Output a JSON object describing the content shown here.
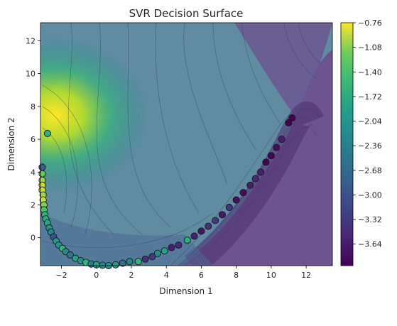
{
  "chart_data": {
    "type": "contour",
    "title": "SVR Decision Surface",
    "xlabel": "Dimension 1",
    "ylabel": "Dimension 2",
    "xlim": [
      -3.2,
      13.5
    ],
    "ylim": [
      -1.7,
      13.1
    ],
    "xticks": [
      -2,
      0,
      2,
      4,
      6,
      8,
      10,
      12
    ],
    "yticks": [
      0,
      2,
      4,
      6,
      8,
      10,
      12
    ],
    "colorbar": {
      "range": [
        -3.92,
        -0.76
      ],
      "ticks": [
        -0.76,
        -1.08,
        -1.4,
        -1.72,
        -2.04,
        -2.36,
        -2.68,
        -3.0,
        -3.32,
        -3.64
      ],
      "tick_labels": [
        "-0.76",
        "-1.08",
        "-1.40",
        "-1.72",
        "-2.04",
        "-2.36",
        "-2.68",
        "-3.00",
        "-3.32",
        "-3.64"
      ],
      "colormap": "viridis"
    },
    "points": [
      {
        "x": -3.1,
        "y": 4.3,
        "v": -2.8
      },
      {
        "x": -3.1,
        "y": 3.9,
        "v": -1.2
      },
      {
        "x": -3.1,
        "y": 3.5,
        "v": -1.0
      },
      {
        "x": -3.1,
        "y": 3.2,
        "v": -0.9
      },
      {
        "x": -3.1,
        "y": 2.9,
        "v": -0.9
      },
      {
        "x": -3.05,
        "y": 2.6,
        "v": -1.0
      },
      {
        "x": -3.05,
        "y": 2.3,
        "v": -0.9
      },
      {
        "x": -3.0,
        "y": 2.0,
        "v": -1.1
      },
      {
        "x": -3.0,
        "y": 1.7,
        "v": -1.4
      },
      {
        "x": -2.95,
        "y": 1.4,
        "v": -1.6
      },
      {
        "x": -2.9,
        "y": 1.15,
        "v": -1.7
      },
      {
        "x": -2.8,
        "y": 0.9,
        "v": -1.8
      },
      {
        "x": -2.7,
        "y": 0.6,
        "v": -2.0
      },
      {
        "x": -2.6,
        "y": 0.35,
        "v": -2.3
      },
      {
        "x": -2.45,
        "y": 0.05,
        "v": -3.0
      },
      {
        "x": -2.3,
        "y": -0.2,
        "v": -2.0
      },
      {
        "x": -2.15,
        "y": -0.45,
        "v": -2.1
      },
      {
        "x": -1.95,
        "y": -0.65,
        "v": -1.6
      },
      {
        "x": -1.75,
        "y": -0.85,
        "v": -2.2
      },
      {
        "x": -1.5,
        "y": -1.05,
        "v": -2.5
      },
      {
        "x": -1.2,
        "y": -1.25,
        "v": -1.9
      },
      {
        "x": -0.9,
        "y": -1.4,
        "v": -2.1
      },
      {
        "x": -0.6,
        "y": -1.5,
        "v": -1.6
      },
      {
        "x": -0.3,
        "y": -1.6,
        "v": -2.4
      },
      {
        "x": 0.0,
        "y": -1.65,
        "v": -1.8
      },
      {
        "x": 0.35,
        "y": -1.68,
        "v": -2.2
      },
      {
        "x": 0.7,
        "y": -1.7,
        "v": -2.0
      },
      {
        "x": 1.1,
        "y": -1.65,
        "v": -1.9
      },
      {
        "x": 1.5,
        "y": -1.55,
        "v": -2.6
      },
      {
        "x": 1.9,
        "y": -1.45,
        "v": -2.3
      },
      {
        "x": 2.4,
        "y": -1.45,
        "v": -1.6
      },
      {
        "x": 2.8,
        "y": -1.3,
        "v": -3.4
      },
      {
        "x": 3.2,
        "y": -1.15,
        "v": -3.3
      },
      {
        "x": 3.5,
        "y": -0.95,
        "v": -2.2
      },
      {
        "x": 3.9,
        "y": -0.8,
        "v": -1.9
      },
      {
        "x": 4.3,
        "y": -0.6,
        "v": -3.6
      },
      {
        "x": 4.7,
        "y": -0.45,
        "v": -3.5
      },
      {
        "x": 5.2,
        "y": -0.15,
        "v": -1.7
      },
      {
        "x": 5.6,
        "y": 0.1,
        "v": -3.6
      },
      {
        "x": 6.0,
        "y": 0.4,
        "v": -3.7
      },
      {
        "x": 6.4,
        "y": 0.7,
        "v": -3.4
      },
      {
        "x": 6.8,
        "y": 1.05,
        "v": -3.3
      },
      {
        "x": 7.2,
        "y": 1.4,
        "v": -3.7
      },
      {
        "x": 7.6,
        "y": 1.85,
        "v": -3.4
      },
      {
        "x": 8.0,
        "y": 2.3,
        "v": -3.8
      },
      {
        "x": 8.4,
        "y": 2.75,
        "v": -3.8
      },
      {
        "x": 8.8,
        "y": 3.2,
        "v": -3.6
      },
      {
        "x": 9.1,
        "y": 3.6,
        "v": -3.5
      },
      {
        "x": 9.4,
        "y": 4.0,
        "v": -3.6
      },
      {
        "x": 9.7,
        "y": 4.6,
        "v": -3.9
      },
      {
        "x": 10.0,
        "y": 5.0,
        "v": -3.9
      },
      {
        "x": 10.3,
        "y": 5.5,
        "v": -3.8
      },
      {
        "x": 10.6,
        "y": 6.0,
        "v": -3.6
      },
      {
        "x": 11.0,
        "y": 7.0,
        "v": -3.9
      },
      {
        "x": 11.2,
        "y": 7.3,
        "v": -3.9
      },
      {
        "x": -2.8,
        "y": 6.35,
        "v": -1.7
      }
    ]
  }
}
